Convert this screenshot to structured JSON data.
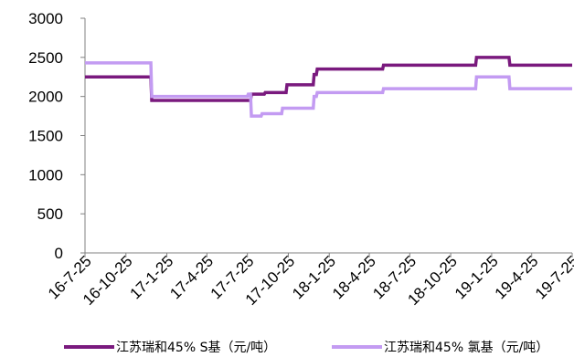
{
  "chart_data": {
    "type": "line",
    "x_ticks": [
      "16-7-25",
      "16-10-25",
      "17-1-25",
      "17-4-25",
      "17-7-25",
      "17-10-25",
      "18-1-25",
      "18-4-25",
      "18-7-25",
      "18-10-25",
      "19-1-25",
      "19-4-25",
      "19-7-25"
    ],
    "ylim": [
      0,
      3000
    ],
    "y_ticks": [
      0,
      500,
      1000,
      1500,
      2000,
      2500,
      3000
    ],
    "grid": false,
    "legend_position": "bottom",
    "series": [
      {
        "name": "江苏瑞和45% S基（元/吨）",
        "color": "#7a1a7e",
        "points": [
          [
            "16-7-25",
            2250
          ],
          [
            "16-12-20",
            2250
          ],
          [
            "16-12-22",
            1950
          ],
          [
            "17-8-1",
            1950
          ],
          [
            "17-8-3",
            2030
          ],
          [
            "17-9-1",
            2030
          ],
          [
            "17-9-3",
            2050
          ],
          [
            "17-10-20",
            2050
          ],
          [
            "17-10-22",
            2150
          ],
          [
            "17-12-20",
            2150
          ],
          [
            "17-12-22",
            2280
          ],
          [
            "17-12-27",
            2280
          ],
          [
            "17-12-29",
            2350
          ],
          [
            "18-5-25",
            2350
          ],
          [
            "18-5-27",
            2400
          ],
          [
            "18-12-20",
            2400
          ],
          [
            "18-12-22",
            2500
          ],
          [
            "19-3-5",
            2500
          ],
          [
            "19-3-7",
            2400
          ],
          [
            "19-7-25",
            2400
          ]
        ]
      },
      {
        "name": "江苏瑞和45% 氯基（元/吨）",
        "color": "#c39bf2",
        "points": [
          [
            "16-7-25",
            2430
          ],
          [
            "16-12-20",
            2430
          ],
          [
            "16-12-22",
            2000
          ],
          [
            "17-7-25",
            2000
          ],
          [
            "17-7-27",
            2030
          ],
          [
            "17-8-1",
            2030
          ],
          [
            "17-8-3",
            1750
          ],
          [
            "17-8-25",
            1750
          ],
          [
            "17-8-27",
            1780
          ],
          [
            "17-10-10",
            1780
          ],
          [
            "17-10-12",
            1850
          ],
          [
            "17-12-20",
            1850
          ],
          [
            "17-12-22",
            2000
          ],
          [
            "17-12-27",
            2000
          ],
          [
            "17-12-29",
            2050
          ],
          [
            "18-5-25",
            2050
          ],
          [
            "18-5-27",
            2100
          ],
          [
            "18-12-20",
            2100
          ],
          [
            "18-12-22",
            2250
          ],
          [
            "19-3-5",
            2250
          ],
          [
            "19-3-7",
            2100
          ],
          [
            "19-7-25",
            2100
          ]
        ]
      }
    ]
  }
}
